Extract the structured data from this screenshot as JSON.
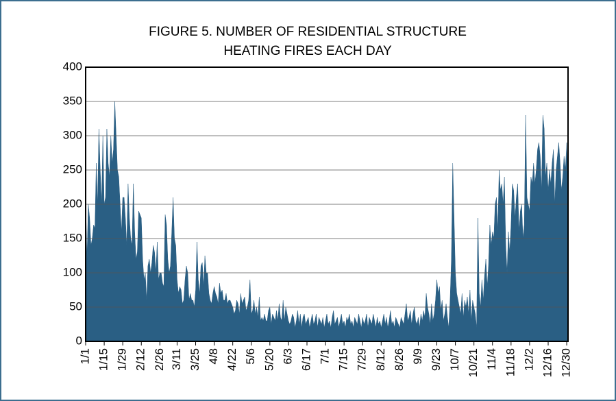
{
  "chart_data": {
    "type": "area",
    "title": [
      "FIGURE 5.  NUMBER OF RESIDENTIAL STRUCTURE",
      "HEATING FIRES EACH DAY"
    ],
    "color": "#2a5f84",
    "grid": true,
    "xlim": [
      1,
      365
    ],
    "ylim": [
      0,
      400
    ],
    "yticks": [
      0,
      50,
      100,
      150,
      200,
      250,
      300,
      350,
      400
    ],
    "xticks": [
      {
        "value": 1,
        "label": "1/1"
      },
      {
        "value": 15,
        "label": "1/15"
      },
      {
        "value": 29,
        "label": "1/29"
      },
      {
        "value": 43,
        "label": "2/12"
      },
      {
        "value": 57,
        "label": "2/26"
      },
      {
        "value": 70,
        "label": "3/11"
      },
      {
        "value": 84,
        "label": "3/25"
      },
      {
        "value": 98,
        "label": "4/8"
      },
      {
        "value": 112,
        "label": "4/22"
      },
      {
        "value": 126,
        "label": "5/6"
      },
      {
        "value": 140,
        "label": "5/20"
      },
      {
        "value": 154,
        "label": "6/3"
      },
      {
        "value": 168,
        "label": "6/17"
      },
      {
        "value": 182,
        "label": "7/1"
      },
      {
        "value": 196,
        "label": "7/15"
      },
      {
        "value": 210,
        "label": "7/29"
      },
      {
        "value": 224,
        "label": "8/12"
      },
      {
        "value": 238,
        "label": "8/26"
      },
      {
        "value": 252,
        "label": "9/9"
      },
      {
        "value": 266,
        "label": "9/23"
      },
      {
        "value": 280,
        "label": "10/7"
      },
      {
        "value": 294,
        "label": "10/21"
      },
      {
        "value": 308,
        "label": "11/4"
      },
      {
        "value": 322,
        "label": "11/18"
      },
      {
        "value": 336,
        "label": "12/2"
      },
      {
        "value": 350,
        "label": "12/16"
      },
      {
        "value": 364,
        "label": "12/30"
      }
    ],
    "x": [
      1,
      2,
      3,
      4,
      5,
      6,
      7,
      8,
      9,
      10,
      11,
      12,
      13,
      14,
      15,
      16,
      17,
      18,
      19,
      20,
      21,
      22,
      23,
      24,
      25,
      26,
      27,
      28,
      29,
      30,
      31,
      32,
      33,
      34,
      35,
      36,
      37,
      38,
      39,
      40,
      41,
      42,
      43,
      44,
      45,
      46,
      47,
      48,
      49,
      50,
      51,
      52,
      53,
      54,
      55,
      56,
      57,
      58,
      59,
      60,
      61,
      62,
      63,
      64,
      65,
      66,
      67,
      68,
      69,
      70,
      71,
      72,
      73,
      74,
      75,
      76,
      77,
      78,
      79,
      80,
      81,
      82,
      83,
      84,
      85,
      86,
      87,
      88,
      89,
      90,
      91,
      92,
      93,
      94,
      95,
      96,
      97,
      98,
      99,
      100,
      101,
      102,
      103,
      104,
      105,
      106,
      107,
      108,
      109,
      110,
      111,
      112,
      113,
      114,
      115,
      116,
      117,
      118,
      119,
      120,
      121,
      122,
      123,
      124,
      125,
      126,
      127,
      128,
      129,
      130,
      131,
      132,
      133,
      134,
      135,
      136,
      137,
      138,
      139,
      140,
      141,
      142,
      143,
      144,
      145,
      146,
      147,
      148,
      149,
      150,
      151,
      152,
      153,
      154,
      155,
      156,
      157,
      158,
      159,
      160,
      161,
      162,
      163,
      164,
      165,
      166,
      167,
      168,
      169,
      170,
      171,
      172,
      173,
      174,
      175,
      176,
      177,
      178,
      179,
      180,
      181,
      182,
      183,
      184,
      185,
      186,
      187,
      188,
      189,
      190,
      191,
      192,
      193,
      194,
      195,
      196,
      197,
      198,
      199,
      200,
      201,
      202,
      203,
      204,
      205,
      206,
      207,
      208,
      209,
      210,
      211,
      212,
      213,
      214,
      215,
      216,
      217,
      218,
      219,
      220,
      221,
      222,
      223,
      224,
      225,
      226,
      227,
      228,
      229,
      230,
      231,
      232,
      233,
      234,
      235,
      236,
      237,
      238,
      239,
      240,
      241,
      242,
      243,
      244,
      245,
      246,
      247,
      248,
      249,
      250,
      251,
      252,
      253,
      254,
      255,
      256,
      257,
      258,
      259,
      260,
      261,
      262,
      263,
      264,
      265,
      266,
      267,
      268,
      269,
      270,
      271,
      272,
      273,
      274,
      275,
      276,
      277,
      278,
      279,
      280,
      281,
      282,
      283,
      284,
      285,
      286,
      287,
      288,
      289,
      290,
      291,
      292,
      293,
      294,
      295,
      296,
      297,
      298,
      299,
      300,
      301,
      302,
      303,
      304,
      305,
      306,
      307,
      308,
      309,
      310,
      311,
      312,
      313,
      314,
      315,
      316,
      317,
      318,
      319,
      320,
      321,
      322,
      323,
      324,
      325,
      326,
      327,
      328,
      329,
      330,
      331,
      332,
      333,
      334,
      335,
      336,
      337,
      338,
      339,
      340,
      341,
      342,
      343,
      344,
      345,
      346,
      347,
      348,
      349,
      350,
      351,
      352,
      353,
      354,
      355,
      356,
      357,
      358,
      359,
      360,
      361,
      362,
      363,
      364,
      365
    ],
    "values": [
      210,
      120,
      200,
      180,
      140,
      150,
      170,
      165,
      260,
      200,
      310,
      250,
      200,
      300,
      200,
      210,
      310,
      260,
      240,
      300,
      260,
      280,
      350,
      300,
      250,
      240,
      200,
      160,
      210,
      210,
      180,
      140,
      230,
      180,
      150,
      140,
      230,
      160,
      120,
      130,
      190,
      185,
      180,
      120,
      90,
      100,
      60,
      110,
      120,
      100,
      115,
      140,
      130,
      100,
      145,
      90,
      100,
      100,
      85,
      80,
      185,
      170,
      120,
      100,
      110,
      160,
      210,
      150,
      140,
      90,
      70,
      80,
      75,
      55,
      60,
      90,
      110,
      100,
      60,
      70,
      60,
      60,
      50,
      75,
      145,
      90,
      70,
      110,
      115,
      80,
      125,
      100,
      100,
      70,
      60,
      55,
      70,
      80,
      70,
      65,
      55,
      85,
      70,
      75,
      60,
      60,
      70,
      55,
      60,
      60,
      55,
      50,
      40,
      45,
      60,
      55,
      40,
      70,
      55,
      60,
      65,
      45,
      50,
      60,
      90,
      40,
      45,
      60,
      40,
      50,
      35,
      65,
      30,
      35,
      30,
      40,
      30,
      30,
      45,
      50,
      25,
      40,
      35,
      30,
      45,
      30,
      55,
      35,
      30,
      60,
      30,
      50,
      40,
      30,
      25,
      30,
      40,
      35,
      20,
      30,
      45,
      25,
      40,
      20,
      35,
      40,
      25,
      30,
      35,
      20,
      30,
      40,
      25,
      30,
      40,
      20,
      35,
      30,
      25,
      35,
      20,
      30,
      40,
      25,
      30,
      20,
      35,
      45,
      25,
      30,
      35,
      20,
      30,
      40,
      25,
      30,
      20,
      35,
      30,
      40,
      25,
      30,
      20,
      35,
      30,
      25,
      40,
      30,
      20,
      35,
      25,
      30,
      40,
      20,
      35,
      30,
      25,
      40,
      30,
      20,
      35,
      25,
      30,
      20,
      30,
      40,
      25,
      35,
      20,
      30,
      45,
      25,
      30,
      20,
      35,
      30,
      25,
      20,
      35,
      30,
      25,
      40,
      55,
      30,
      35,
      45,
      25,
      40,
      50,
      30,
      25,
      35,
      20,
      40,
      30,
      45,
      35,
      70,
      50,
      40,
      25,
      55,
      30,
      40,
      60,
      90,
      70,
      80,
      45,
      60,
      30,
      40,
      55,
      35,
      20,
      60,
      120,
      260,
      180,
      100,
      70,
      60,
      50,
      40,
      70,
      35,
      60,
      50,
      65,
      40,
      75,
      30,
      60,
      50,
      40,
      20,
      180,
      70,
      50,
      90,
      60,
      95,
      120,
      80,
      110,
      170,
      140,
      160,
      150,
      200,
      210,
      160,
      250,
      220,
      230,
      200,
      240,
      140,
      100,
      160,
      130,
      170,
      230,
      220,
      180,
      210,
      230,
      160,
      190,
      200,
      150,
      170,
      330,
      210,
      200,
      190,
      240,
      230,
      260,
      230,
      250,
      280,
      290,
      270,
      220,
      330,
      310,
      240,
      260,
      220,
      250,
      230,
      260,
      280,
      200,
      250,
      270,
      290,
      260,
      220,
      240,
      270,
      250,
      290,
      210
    ]
  }
}
